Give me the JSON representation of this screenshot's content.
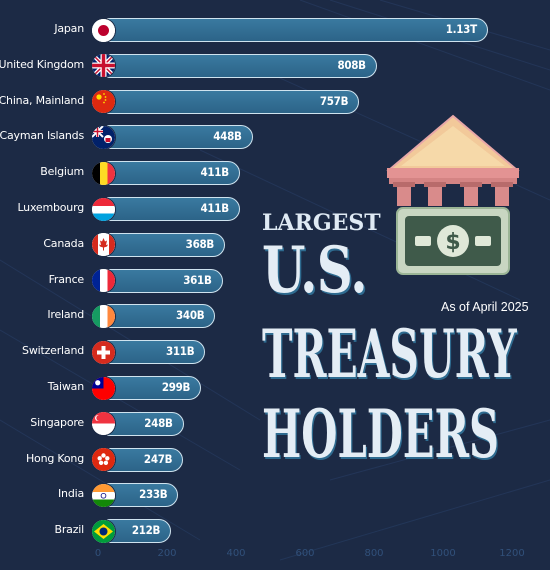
{
  "title": {
    "line1": "LARGEST",
    "line2": "U.S.",
    "line3": "TREASURY",
    "line4": "HOLDERS"
  },
  "subtitle": "As of April 2025",
  "colors": {
    "background": "#1c2a45",
    "bar_fill": "#2f6b90",
    "bar_border": "#cfe3ef",
    "tick_color": "#31507a"
  },
  "chart_data": {
    "type": "bar",
    "orientation": "horizontal",
    "categories": [
      "Japan",
      "United Kingdom",
      "China, Mainland",
      "Cayman Islands",
      "Belgium",
      "Luxembourg",
      "Canada",
      "France",
      "Ireland",
      "Switzerland",
      "Taiwan",
      "Singapore",
      "Hong Kong",
      "India",
      "Brazil"
    ],
    "values": [
      1130,
      808,
      757,
      448,
      411,
      411,
      368,
      361,
      340,
      311,
      299,
      248,
      247,
      233,
      212
    ],
    "value_labels": [
      "1.13T",
      "808B",
      "757B",
      "448B",
      "411B",
      "411B",
      "368B",
      "361B",
      "340B",
      "311B",
      "299B",
      "248B",
      "247B",
      "233B",
      "212B"
    ],
    "flags": [
      "japan-flag-icon",
      "united-kingdom-flag-icon",
      "china-flag-icon",
      "cayman-islands-flag-icon",
      "belgium-flag-icon",
      "luxembourg-flag-icon",
      "canada-flag-icon",
      "france-flag-icon",
      "ireland-flag-icon",
      "switzerland-flag-icon",
      "taiwan-flag-icon",
      "singapore-flag-icon",
      "hong-kong-flag-icon",
      "india-flag-icon",
      "brazil-flag-icon"
    ],
    "xticks": [
      "0",
      "200",
      "400",
      "600",
      "800",
      "1000",
      "1200"
    ],
    "xlim": [
      0,
      1200
    ],
    "grid": false,
    "legend": "none"
  },
  "icons": {
    "bank": "bank-building-icon",
    "dollar": "dollar-bill-icon"
  }
}
